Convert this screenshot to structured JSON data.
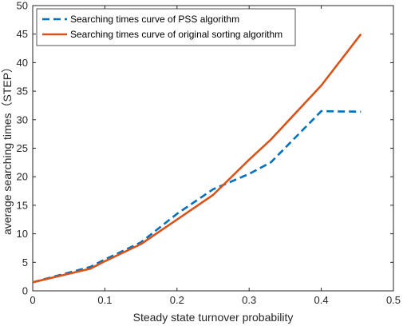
{
  "chart_data": {
    "type": "line",
    "title": "",
    "xlabel": "Steady state turnover probability",
    "ylabel": "average searching times（STEP）",
    "xlim": [
      0,
      0.5
    ],
    "ylim": [
      0,
      50
    ],
    "xticks": [
      0,
      0.1,
      0.2,
      0.3,
      0.4,
      0.5
    ],
    "yticks": [
      0,
      5,
      10,
      15,
      20,
      25,
      30,
      35,
      40,
      45,
      50
    ],
    "xtick_labels": [
      "0",
      "0.1",
      "0.2",
      "0.3",
      "0.4",
      "0.5"
    ],
    "ytick_labels": [
      "0",
      "5",
      "10",
      "15",
      "20",
      "25",
      "30",
      "35",
      "40",
      "45",
      "50"
    ],
    "grid": false,
    "legend_position": "top-left",
    "series": [
      {
        "name": "Searching times curve of PSS algorithm",
        "style": "dashed",
        "color": "#0072BD",
        "x": [
          0,
          0.05,
          0.08,
          0.1,
          0.15,
          0.2,
          0.25,
          0.3,
          0.33,
          0.4,
          0.455
        ],
        "y": [
          1.5,
          3.2,
          4.2,
          5.5,
          8.5,
          13.5,
          17.8,
          20.5,
          22.5,
          31.5,
          31.4
        ]
      },
      {
        "name": "Searching times curve of original sorting algorithm",
        "style": "solid",
        "color": "#D95319",
        "x": [
          0,
          0.05,
          0.08,
          0.1,
          0.15,
          0.2,
          0.25,
          0.3,
          0.33,
          0.4,
          0.455
        ],
        "y": [
          1.5,
          3.0,
          3.9,
          5.2,
          8.2,
          12.5,
          16.8,
          23.0,
          26.5,
          36.0,
          45.0
        ]
      }
    ]
  }
}
